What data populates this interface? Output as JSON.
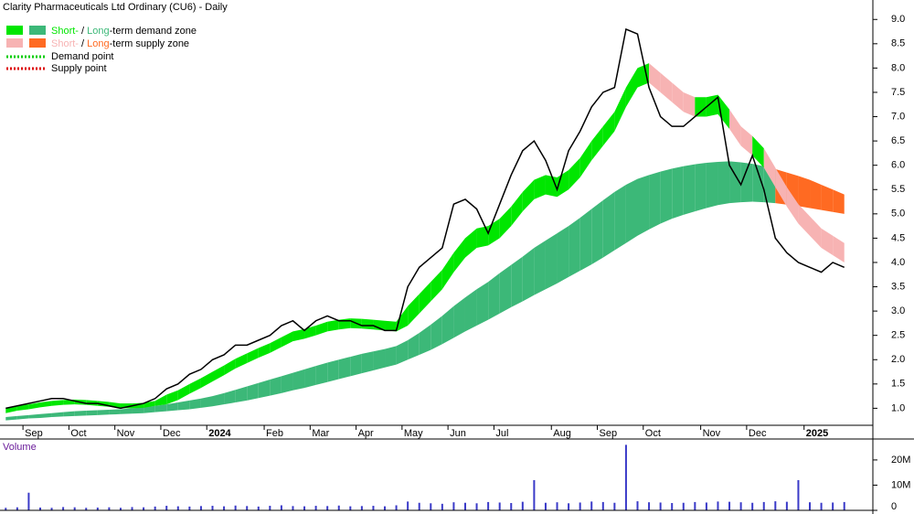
{
  "chart_data": {
    "type": "stock",
    "title": "Clarity Pharmaceuticals Ltd Ordinary (CU6) - Daily",
    "categories": [
      null,
      null,
      "Sep",
      null,
      null,
      null,
      "Oct",
      null,
      null,
      null,
      "Nov",
      null,
      null,
      null,
      "Dec",
      null,
      null,
      null,
      "2024",
      null,
      null,
      null,
      null,
      "Feb",
      null,
      null,
      null,
      "Mar",
      null,
      null,
      null,
      "Apr",
      null,
      null,
      null,
      "May",
      null,
      null,
      null,
      "Jun",
      null,
      null,
      null,
      "Jul",
      null,
      null,
      null,
      null,
      "Aug",
      null,
      null,
      null,
      "Sep",
      null,
      null,
      null,
      "Oct",
      null,
      null,
      null,
      null,
      "Nov",
      null,
      null,
      null,
      "Dec",
      null,
      null,
      null,
      null,
      "2025",
      null,
      null,
      null
    ],
    "series": [
      {
        "name": "Price",
        "color": "#000000",
        "values": [
          1.0,
          1.05,
          1.1,
          1.15,
          1.2,
          1.2,
          1.15,
          1.1,
          1.1,
          1.05,
          1.0,
          1.05,
          1.1,
          1.2,
          1.4,
          1.5,
          1.7,
          1.8,
          2.0,
          2.1,
          2.3,
          2.3,
          2.4,
          2.5,
          2.7,
          2.8,
          2.6,
          2.8,
          2.9,
          2.8,
          2.8,
          2.7,
          2.7,
          2.6,
          2.6,
          3.5,
          3.9,
          4.1,
          4.3,
          5.2,
          5.3,
          5.1,
          4.6,
          5.2,
          5.8,
          6.3,
          6.5,
          6.1,
          5.5,
          6.3,
          6.7,
          7.2,
          7.5,
          7.6,
          8.8,
          8.7,
          7.6,
          7.0,
          6.8,
          6.8,
          7.0,
          7.2,
          7.4,
          6.0,
          5.6,
          6.2,
          5.5,
          4.5,
          4.2,
          4.0,
          3.9,
          3.8,
          4.0,
          3.9
        ]
      }
    ],
    "zones": {
      "short": {
        "demand_color": "#00e600",
        "supply_color": "#f7b3b3",
        "lower": [
          0.9,
          0.95,
          0.98,
          1.02,
          1.05,
          1.07,
          1.08,
          1.07,
          1.05,
          1.03,
          1.0,
          1.0,
          1.01,
          1.05,
          1.08,
          1.17,
          1.3,
          1.42,
          1.55,
          1.68,
          1.82,
          1.93,
          2.04,
          2.14,
          2.26,
          2.38,
          2.43,
          2.5,
          2.58,
          2.62,
          2.65,
          2.64,
          2.62,
          2.6,
          2.58,
          2.7,
          2.95,
          3.2,
          3.45,
          3.8,
          4.1,
          4.3,
          4.35,
          4.5,
          4.75,
          5.05,
          5.3,
          5.4,
          5.35,
          5.5,
          5.75,
          6.1,
          6.4,
          6.7,
          7.2,
          7.6,
          7.7,
          7.5,
          7.3,
          7.1,
          7.0,
          7.0,
          7.05,
          6.75,
          6.4,
          6.2,
          5.95,
          5.55,
          5.15,
          4.8,
          4.55,
          4.3,
          4.15,
          4.0
        ],
        "upper": [
          1.0,
          1.05,
          1.08,
          1.12,
          1.15,
          1.17,
          1.18,
          1.17,
          1.15,
          1.13,
          1.1,
          1.1,
          1.11,
          1.15,
          1.28,
          1.37,
          1.5,
          1.62,
          1.75,
          1.88,
          2.02,
          2.13,
          2.24,
          2.34,
          2.46,
          2.58,
          2.63,
          2.7,
          2.78,
          2.82,
          2.85,
          2.84,
          2.82,
          2.8,
          2.78,
          3.1,
          3.35,
          3.6,
          3.85,
          4.2,
          4.5,
          4.7,
          4.75,
          4.9,
          5.15,
          5.45,
          5.7,
          5.8,
          5.75,
          5.9,
          6.15,
          6.5,
          6.8,
          7.1,
          7.6,
          8.0,
          8.1,
          7.9,
          7.7,
          7.5,
          7.4,
          7.4,
          7.45,
          7.15,
          6.8,
          6.6,
          6.35,
          5.95,
          5.55,
          5.2,
          4.95,
          4.7,
          4.55,
          4.4
        ]
      },
      "long": {
        "demand_color": "#3cb878",
        "supply_color": "#ff6a22",
        "lower": [
          0.75,
          0.77,
          0.79,
          0.8,
          0.82,
          0.83,
          0.84,
          0.85,
          0.86,
          0.87,
          0.88,
          0.89,
          0.9,
          0.92,
          0.94,
          0.96,
          0.98,
          1.01,
          1.04,
          1.08,
          1.12,
          1.16,
          1.21,
          1.26,
          1.31,
          1.37,
          1.42,
          1.48,
          1.54,
          1.6,
          1.66,
          1.72,
          1.78,
          1.84,
          1.9,
          2.0,
          2.1,
          2.2,
          2.32,
          2.45,
          2.58,
          2.7,
          2.82,
          2.95,
          3.08,
          3.2,
          3.33,
          3.45,
          3.57,
          3.7,
          3.83,
          3.96,
          4.1,
          4.25,
          4.4,
          4.55,
          4.68,
          4.8,
          4.9,
          4.98,
          5.05,
          5.12,
          5.18,
          5.22,
          5.24,
          5.25,
          5.24,
          5.22,
          5.19,
          5.16,
          5.12,
          5.08,
          5.04,
          5.0
        ],
        "upper": [
          0.82,
          0.84,
          0.86,
          0.88,
          0.9,
          0.92,
          0.94,
          0.95,
          0.96,
          0.97,
          0.98,
          1.0,
          1.02,
          1.05,
          1.08,
          1.12,
          1.16,
          1.2,
          1.25,
          1.31,
          1.38,
          1.45,
          1.52,
          1.59,
          1.66,
          1.73,
          1.8,
          1.87,
          1.94,
          2.0,
          2.06,
          2.12,
          2.17,
          2.22,
          2.28,
          2.4,
          2.55,
          2.72,
          2.9,
          3.1,
          3.28,
          3.45,
          3.6,
          3.78,
          3.95,
          4.12,
          4.3,
          4.45,
          4.6,
          4.75,
          4.92,
          5.1,
          5.28,
          5.45,
          5.6,
          5.72,
          5.8,
          5.87,
          5.93,
          5.98,
          6.02,
          6.05,
          6.07,
          6.08,
          6.06,
          6.03,
          5.98,
          5.92,
          5.85,
          5.78,
          5.7,
          5.6,
          5.5,
          5.4
        ]
      }
    },
    "legend": {
      "demand": {
        "short": "Short-",
        "sep": " / ",
        "long": "Long",
        "rest": "-term demand zone"
      },
      "supply": {
        "short": "Short-",
        "sep": " / ",
        "long": "Long",
        "rest": "-term supply zone"
      },
      "demand_point": {
        "name": "Demand point",
        "color": "#00cc00"
      },
      "supply_point": {
        "name": "Supply point",
        "color": "#dd0000"
      }
    },
    "ylim": [
      0.65,
      9.4
    ],
    "yticks": [
      {
        "value": 1,
        "label": "1.0"
      },
      1.5,
      {
        "value": 2,
        "label": "2.0"
      },
      2.5,
      {
        "value": 3,
        "label": "3.0"
      },
      3.5,
      {
        "value": 4,
        "label": "4.0"
      },
      4.5,
      {
        "value": 5,
        "label": "5.0"
      },
      5.5,
      {
        "value": 6,
        "label": "6.0"
      },
      6.5,
      {
        "value": 7,
        "label": "7.0"
      },
      7.5,
      {
        "value": 8,
        "label": "8.0"
      },
      8.5,
      {
        "value": 9,
        "label": "9.0"
      }
    ],
    "grid": false,
    "volume": {
      "label": "Volume",
      "color": "#3a3ac8",
      "values": [
        1000000,
        1200000,
        7000000,
        1100000,
        1000000,
        1300000,
        1200000,
        1000000,
        1100000,
        1200000,
        1000000,
        1300000,
        1200000,
        1500000,
        1800000,
        1600000,
        1500000,
        1700000,
        1800000,
        1600000,
        1900000,
        1700000,
        1500000,
        1800000,
        2000000,
        1700000,
        1600000,
        1800000,
        1700000,
        1900000,
        1600000,
        1700000,
        1800000,
        1600000,
        2000000,
        3500000,
        3000000,
        2800000,
        2600000,
        3200000,
        3000000,
        2800000,
        3300000,
        3100000,
        2900000,
        3400000,
        12000000,
        3000000,
        3200000,
        2800000,
        3100000,
        3500000,
        3300000,
        3000000,
        26000000,
        3600000,
        3200000,
        3100000,
        2900000,
        3000000,
        3300000,
        3100000,
        3500000,
        3400000,
        3200000,
        3000000,
        3300000,
        3600000,
        3400000,
        12000000,
        3200000,
        3000000,
        3100000,
        3300000
      ],
      "ylim": [
        0,
        26500000
      ],
      "yticks": [
        0,
        {
          "value": 10000000,
          "label": "10M"
        },
        {
          "value": 20000000,
          "label": "20M"
        }
      ]
    }
  }
}
